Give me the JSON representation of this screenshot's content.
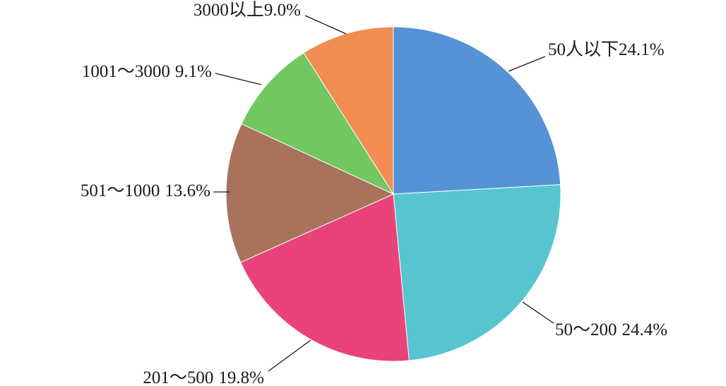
{
  "chart_data": {
    "type": "pie",
    "categories": [
      "50人以下",
      "50～200",
      "201～500",
      "501～1000",
      "1001～3000",
      "3000以上"
    ],
    "values": [
      24.1,
      24.4,
      19.8,
      13.6,
      9.1,
      9.0
    ],
    "value_labels": [
      "24.1%",
      "24.4%",
      "19.8%",
      "13.6%",
      "9.1%",
      "9.0%"
    ],
    "colors": [
      "#5592d6",
      "#56c5d0",
      "#e9437a",
      "#a8735a",
      "#72c761",
      "#f28c50"
    ]
  }
}
